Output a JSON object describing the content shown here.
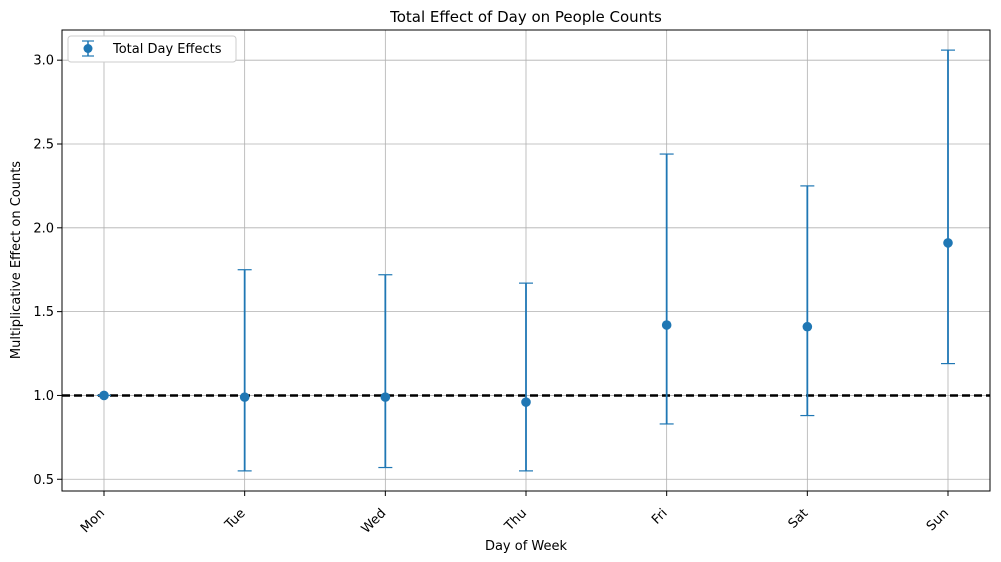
{
  "chart_data": {
    "type": "errorbar",
    "title": "Total Effect of Day on People Counts",
    "xlabel": "Day of Week",
    "ylabel": "Multiplicative Effect on Counts",
    "categories": [
      "Mon",
      "Tue",
      "Wed",
      "Thu",
      "Fri",
      "Sat",
      "Sun"
    ],
    "series": [
      {
        "name": "Total Day Effects",
        "color": "#1f77b4",
        "values": [
          1.0,
          0.99,
          0.99,
          0.96,
          1.42,
          1.41,
          1.91
        ],
        "lower": [
          1.0,
          0.55,
          0.57,
          0.55,
          0.83,
          0.88,
          1.19
        ],
        "upper": [
          1.0,
          1.75,
          1.72,
          1.67,
          2.44,
          2.25,
          3.06
        ]
      }
    ],
    "reference_line": {
      "y": 1.0,
      "style": "dashed",
      "color": "#000000"
    },
    "ylim": [
      0.43,
      3.18
    ],
    "yticks": [
      0.5,
      1.0,
      1.5,
      2.0,
      2.5,
      3.0
    ],
    "ytick_labels": [
      "0.5",
      "1.0",
      "1.5",
      "2.0",
      "2.5",
      "3.0"
    ],
    "grid": true,
    "legend_position": "top-left"
  }
}
